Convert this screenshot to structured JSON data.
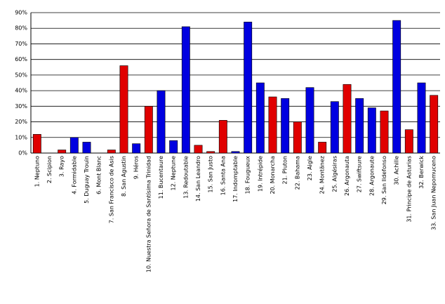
{
  "chart_data": {
    "type": "bar",
    "categories": [
      "1. Neptuno",
      "2. Scipion",
      "3. Rayo",
      "4. Formidable",
      "5. Duguay Trouin",
      "6. Mont Blanc",
      "7. San Francisco de Asis",
      "8. San Agustin",
      "9. Héros",
      "10. Nuestra Señora de Santísima Trinidad",
      "11. Bucentaure",
      "12. Neptune",
      "13. Redoutable",
      "14. San Leandro",
      "15. San Justo",
      "16. Santa Ana",
      "17. Indomptable",
      "18. Fougueux",
      "19. Intrépide",
      "20. Monarcha",
      "21. Pluton",
      "22. Bahama",
      "23. Aigle",
      "24. Montãnez",
      "25. Algésiras",
      "26. Argonauta",
      "27. Swiftsure",
      "28. Argonaute",
      "29. San Ildefonso",
      "30. Achille",
      "31. Principe de Asturias",
      "32. Berwick",
      "33. San Juan Nepomuceno"
    ],
    "values": [
      12,
      0,
      2,
      10,
      7,
      0,
      2,
      56,
      6,
      30,
      40,
      8,
      81,
      5,
      1,
      21,
      1,
      84,
      45,
      36,
      35,
      20,
      42,
      7,
      33,
      44,
      35,
      29,
      27,
      85,
      15,
      45,
      37
    ],
    "colors": [
      "#e00000",
      "#e00000",
      "#e00000",
      "#0000e0",
      "#0000e0",
      "#e00000",
      "#e00000",
      "#e00000",
      "#0000e0",
      "#e00000",
      "#0000e0",
      "#0000e0",
      "#0000e0",
      "#e00000",
      "#e00000",
      "#e00000",
      "#0000e0",
      "#0000e0",
      "#0000e0",
      "#e00000",
      "#0000e0",
      "#e00000",
      "#0000e0",
      "#e00000",
      "#0000e0",
      "#e00000",
      "#0000e0",
      "#0000e0",
      "#e00000",
      "#0000e0",
      "#e00000",
      "#0000e0",
      "#e00000"
    ],
    "ylim": [
      0,
      90
    ],
    "yticks": [
      {
        "value": 0,
        "label": "0%"
      },
      {
        "value": 10,
        "label": "10%"
      },
      {
        "value": 20,
        "label": "20%"
      },
      {
        "value": 30,
        "label": "30%"
      },
      {
        "value": 40,
        "label": "40%"
      },
      {
        "value": 50,
        "label": "50%"
      },
      {
        "value": 60,
        "label": "60%"
      },
      {
        "value": 70,
        "label": "70%"
      },
      {
        "value": 80,
        "label": "80%"
      },
      {
        "value": 90,
        "label": "90%"
      }
    ],
    "grid": true
  }
}
